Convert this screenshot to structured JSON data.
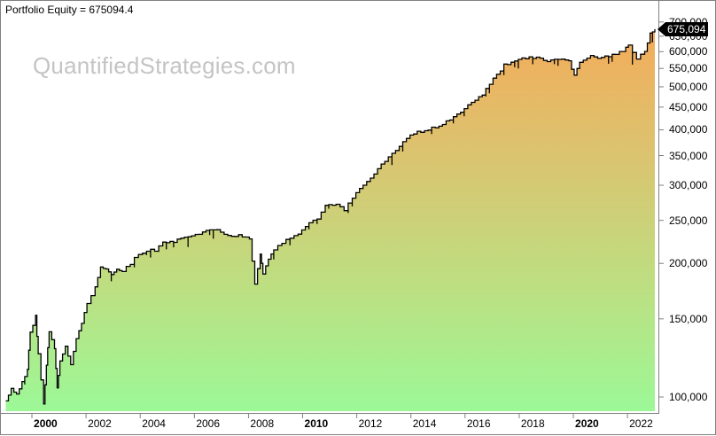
{
  "header": {
    "title": "Portfolio Equity = 675094.4",
    "watermark": "QuantifiedStrategies.com"
  },
  "last_value_tag": "675,094",
  "colors": {
    "fill_top": "#f2b05c",
    "fill_mid": "#d4c874",
    "fill_bottom": "#9ef798",
    "line": "#000000",
    "axis": "#808080",
    "watermark": "#c4c4c4"
  },
  "y_axis": {
    "scale": "log",
    "ticks": [
      "700,000",
      "650,000",
      "600,000",
      "550,000",
      "500,000",
      "450,000",
      "400,000",
      "350,000",
      "300,000",
      "250,000",
      "200,000",
      "150,000",
      "100,000"
    ],
    "tick_values": [
      700000,
      650000,
      600000,
      550000,
      500000,
      450000,
      400000,
      350000,
      300000,
      250000,
      200000,
      150000,
      100000
    ]
  },
  "x_axis": {
    "ticks": [
      {
        "label": "2000",
        "bold": true
      },
      {
        "label": "2002",
        "bold": false
      },
      {
        "label": "2004",
        "bold": false
      },
      {
        "label": "2006",
        "bold": false
      },
      {
        "label": "2008",
        "bold": false
      },
      {
        "label": "2010",
        "bold": true
      },
      {
        "label": "2012",
        "bold": false
      },
      {
        "label": "2014",
        "bold": false
      },
      {
        "label": "2016",
        "bold": false
      },
      {
        "label": "2018",
        "bold": false
      },
      {
        "label": "2020",
        "bold": true
      },
      {
        "label": "2022",
        "bold": false
      }
    ]
  },
  "chart_data": {
    "type": "area",
    "title": "Portfolio Equity = 675094.4",
    "xlabel": "",
    "ylabel": "",
    "y_scale": "log",
    "ylim": [
      90000,
      720000
    ],
    "xlim": [
      1999.0,
      2023.1
    ],
    "grid": false,
    "legend": "none",
    "last_value": 675094.4,
    "series": [
      {
        "name": "Portfolio Equity",
        "x": [
          1999.0,
          1999.2,
          1999.4,
          1999.6,
          1999.8,
          1999.9,
          2000.1,
          2000.2,
          2000.4,
          2000.5,
          2000.6,
          2000.8,
          2000.9,
          2001.0,
          2001.2,
          2001.4,
          2001.6,
          2001.8,
          2002.0,
          2002.3,
          2002.5,
          2002.7,
          2002.9,
          2003.1,
          2003.3,
          2003.6,
          2003.9,
          2004.2,
          2004.5,
          2004.8,
          2005.2,
          2005.6,
          2006.0,
          2006.4,
          2006.8,
          2007.2,
          2007.6,
          2008.0,
          2008.2,
          2008.4,
          2008.5,
          2008.7,
          2008.9,
          2009.2,
          2009.5,
          2009.8,
          2010.2,
          2010.5,
          2010.8,
          2011.2,
          2011.5,
          2011.8,
          2012.2,
          2012.6,
          2013.0,
          2013.4,
          2013.8,
          2014.2,
          2014.6,
          2015.0,
          2015.4,
          2015.8,
          2016.2,
          2016.6,
          2017.0,
          2017.4,
          2017.8,
          2018.2,
          2018.6,
          2019.0,
          2019.4,
          2019.8,
          2020.0,
          2020.2,
          2020.6,
          2021.0,
          2021.4,
          2021.8,
          2022.0,
          2022.3,
          2022.6,
          2022.8,
          2023.0
        ],
        "values": [
          98000,
          104000,
          101000,
          108000,
          115000,
          140000,
          152000,
          125000,
          96000,
          118000,
          140000,
          128000,
          105000,
          120000,
          130000,
          118000,
          136000,
          146000,
          163000,
          178000,
          195000,
          194000,
          190000,
          193000,
          192000,
          200000,
          210000,
          214000,
          214000,
          222000,
          224000,
          228000,
          232000,
          236000,
          238000,
          230000,
          232000,
          228000,
          180000,
          210000,
          190000,
          205000,
          215000,
          222000,
          228000,
          232000,
          248000,
          252000,
          270000,
          272000,
          262000,
          282000,
          300000,
          320000,
          340000,
          360000,
          385000,
          395000,
          400000,
          410000,
          420000,
          440000,
          460000,
          480000,
          520000,
          560000,
          575000,
          582000,
          580000,
          570000,
          575000,
          572000,
          530000,
          570000,
          585000,
          580000,
          590000,
          600000,
          620000,
          580000,
          600000,
          660000,
          675094
        ]
      }
    ]
  }
}
